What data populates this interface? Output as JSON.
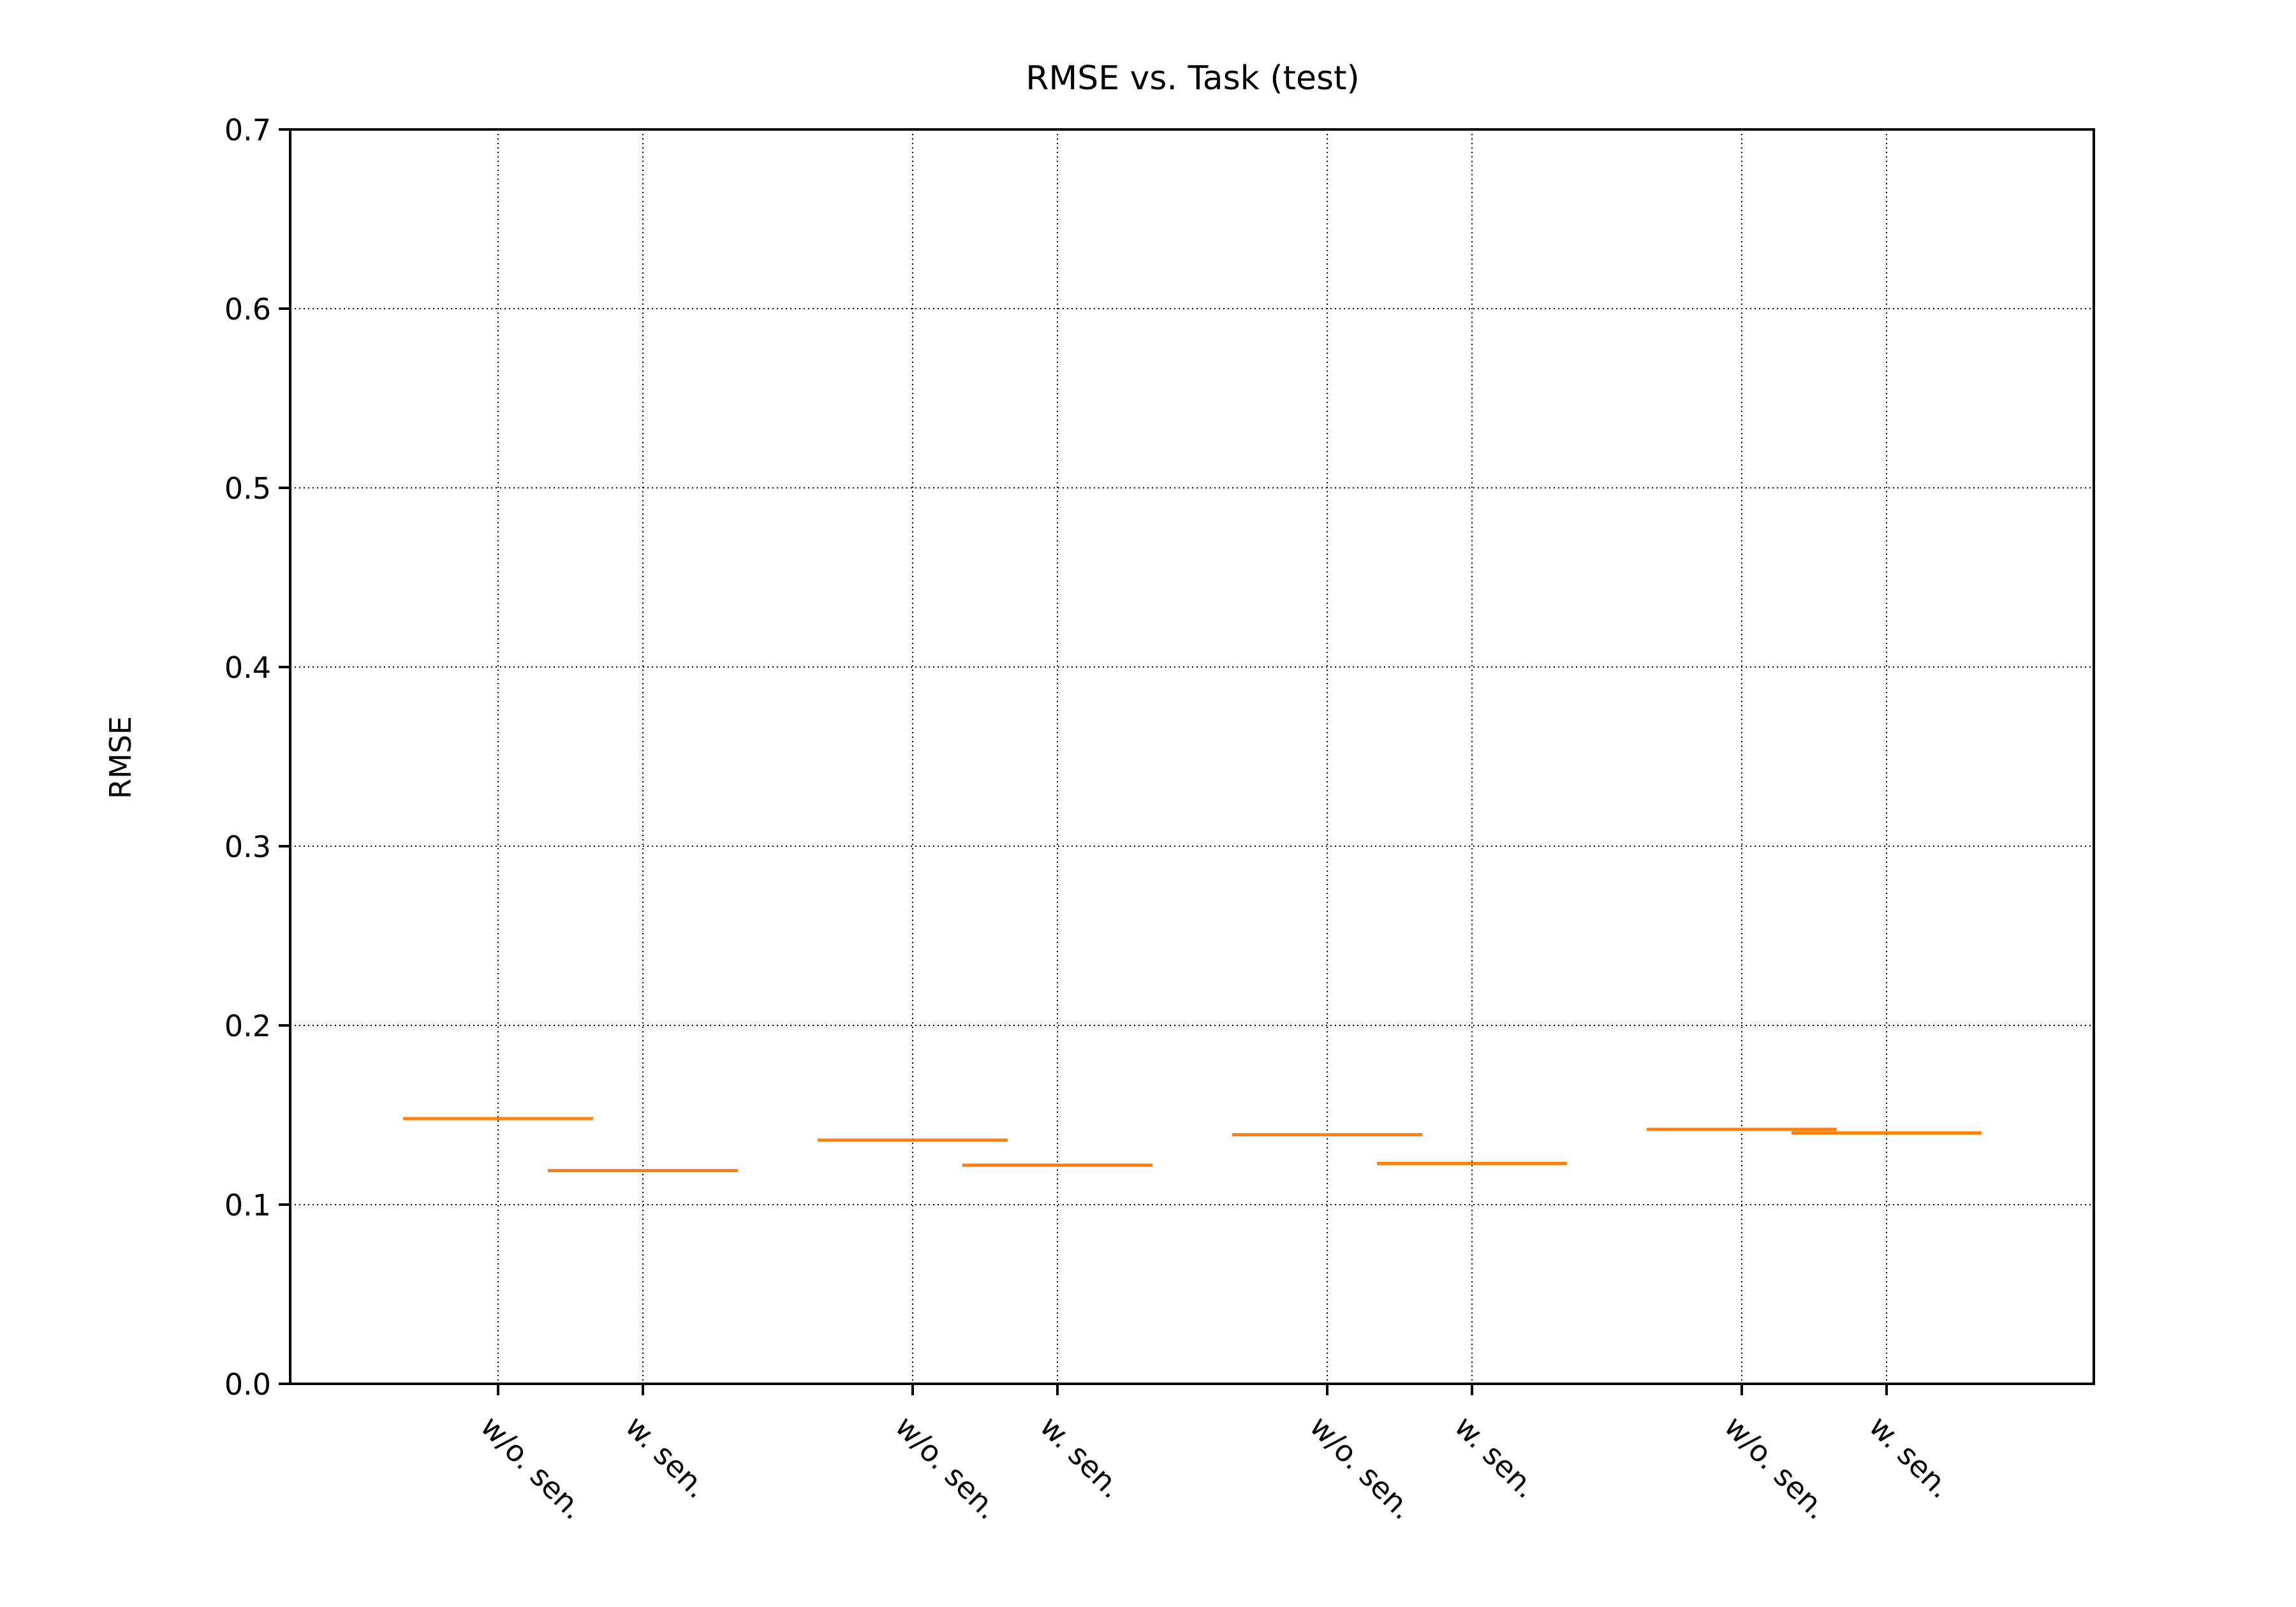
{
  "chart_data": {
    "type": "box",
    "title": "RMSE vs. Task (test)",
    "xlabel": "",
    "ylabel": "RMSE",
    "ylim": [
      0.0,
      0.7
    ],
    "yticks": [
      "0.0",
      "0.1",
      "0.2",
      "0.3",
      "0.4",
      "0.5",
      "0.6",
      "0.7"
    ],
    "categories": [
      "w/o. sen.",
      "w. sen.",
      "w/o. sen.",
      "w. sen.",
      "w/o. sen.",
      "w. sen.",
      "w/o. sen.",
      "w. sen."
    ],
    "values": [
      0.148,
      0.119,
      0.136,
      0.122,
      0.139,
      0.123,
      0.142,
      0.14
    ],
    "grid": true,
    "median_color": "#ff7f0e",
    "axis_color": "#000000"
  }
}
